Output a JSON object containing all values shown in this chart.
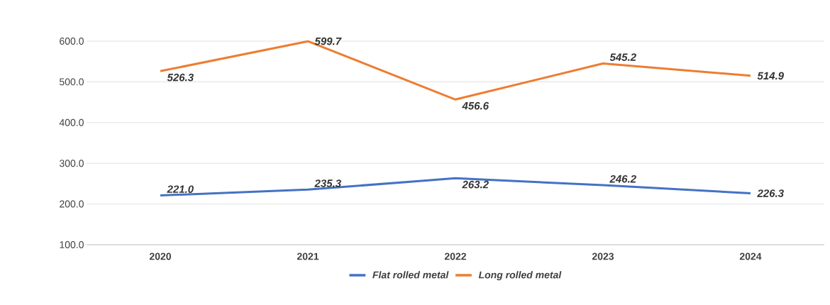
{
  "chart_data": {
    "type": "line",
    "categories": [
      "2020",
      "2021",
      "2022",
      "2023",
      "2024"
    ],
    "series": [
      {
        "name": "Flat rolled metal",
        "color": "#4472c4",
        "values": [
          221.0,
          235.3,
          263.2,
          246.2,
          226.3
        ],
        "value_labels": [
          "221.0",
          "235.3",
          "263.2",
          "246.2",
          "226.3"
        ]
      },
      {
        "name": "Long rolled metal",
        "color": "#ed7d31",
        "values": [
          526.3,
          599.7,
          456.6,
          545.2,
          514.9
        ],
        "value_labels": [
          "526.3",
          "599.7",
          "456.6",
          "545.2",
          "514.9"
        ]
      }
    ],
    "ylim": [
      100,
      600
    ],
    "yticks": [
      {
        "value": 100,
        "label": "100.0"
      },
      {
        "value": 200,
        "label": "200.0"
      },
      {
        "value": 300,
        "label": "300.0"
      },
      {
        "value": 400,
        "label": "400.0"
      },
      {
        "value": 500,
        "label": "500.0"
      },
      {
        "value": 600,
        "label": "600.0"
      }
    ],
    "grid": "y",
    "legend": "bottom",
    "marker": "none",
    "line_style": "solid"
  }
}
